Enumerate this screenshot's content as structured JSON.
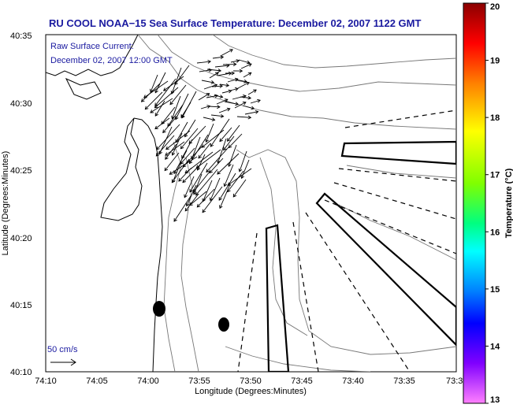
{
  "chart_data": {
    "type": "map",
    "title": "RU COOL  NOAA−15  Sea Surface Temperature:  December 02, 2007 1122 GMT",
    "annotation_lines": [
      "Raw Surface Current:",
      "December 02, 2007 12:00 GMT"
    ],
    "xlabel": "Longitude (Degrees:Minutes)",
    "ylabel": "Latitude (Degrees:Minutes)",
    "x_ticks": [
      "74:10",
      "74:05",
      "74:00",
      "73:55",
      "73:50",
      "73:45",
      "73:40",
      "73:35",
      "73:3"
    ],
    "y_ticks": [
      "40:35",
      "40:30",
      "40:25",
      "40:20",
      "40:15",
      "40:10"
    ],
    "xlim": [
      "74:10",
      "73:30"
    ],
    "ylim": [
      "40:10",
      "40:35"
    ],
    "scale_label": "50 cm/s",
    "colorbar": {
      "label": "Temperature (°C)",
      "range": [
        13,
        20
      ],
      "ticks": [
        "20",
        "19",
        "18",
        "17",
        "16",
        "15",
        "14",
        "13"
      ],
      "colors": [
        "#8b0000",
        "#ff0000",
        "#ff8000",
        "#ffff00",
        "#80ff00",
        "#00ff80",
        "#00ffff",
        "#0080ff",
        "#0000ff",
        "#8000ff",
        "#ff80ff"
      ]
    },
    "markers": [
      {
        "name": "dot-1",
        "lon": "73:59.2",
        "lat": "40:14.6"
      },
      {
        "name": "dot-2",
        "lon": "73:56.5",
        "lat": "40:13.4"
      }
    ],
    "grid": false
  }
}
